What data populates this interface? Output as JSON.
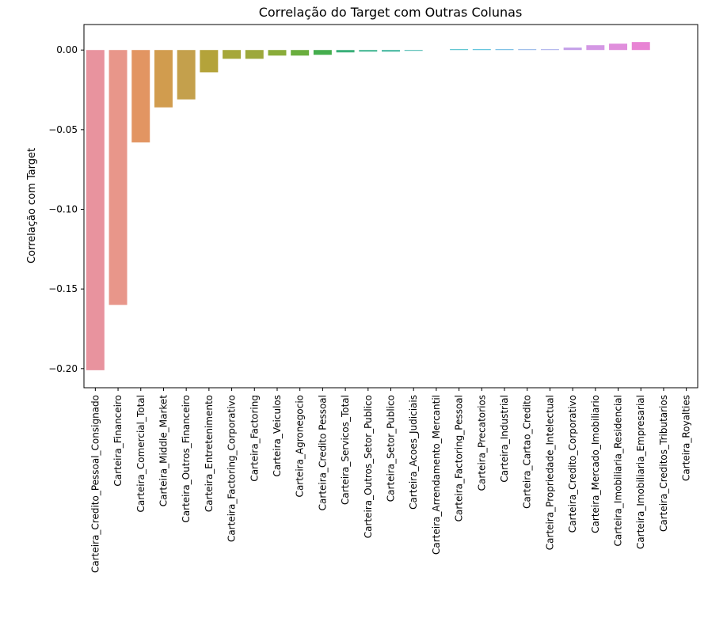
{
  "chart_data": {
    "type": "bar",
    "title": "Correlação do Target com Outras Colunas",
    "xlabel": "",
    "ylabel": "Correlação com Target",
    "ylim": [
      -0.212,
      0.016
    ],
    "yticks": [
      0.0,
      -0.05,
      -0.1,
      -0.15,
      -0.2
    ],
    "ytick_labels": [
      "0.00",
      "−0.05",
      "−0.10",
      "−0.15",
      "−0.20"
    ],
    "grid": false,
    "legend": "none",
    "categories": [
      "Carteira_Credito_Pessoal_Consignado",
      "Carteira_Financeiro",
      "Carteira_Comercial_Total",
      "Carteira_Middle_Market",
      "Carteira_Outros_Financeiro",
      "Carteira_Entretenimento",
      "Carteira_Factoring_Corporativo",
      "Carteira_Factoring",
      "Carteira_Veiculos",
      "Carteira_Agronegocio",
      "Carteira_Credito Pessoal",
      "Carteira_Servicos_Total",
      "Carteira_Outros_Setor_Publico",
      "Carteira_Setor_Publico",
      "Carteira_Acoes_Judiciais",
      "Carteira_Arrendamento_Mercantil",
      "Carteira_Factoring_Pessoal",
      "Carteira_Precatorios",
      "Carteira_Industrial",
      "Carteira_Cartao_Credito",
      "Carteira_Propriedade_Intelectual",
      "Carteira_Credito_Corporativo",
      "Carteira_Mercado_Imobiliario",
      "Carteira_Imobiliaria_Residencial",
      "Carteira_Imobiliaria_Empresarial",
      "Carteira_Creditos_Tributarios",
      "Carteira_Royalties"
    ],
    "values": [
      -0.201,
      -0.16,
      -0.058,
      -0.036,
      -0.031,
      -0.014,
      -0.0055,
      -0.0055,
      -0.0035,
      -0.0035,
      -0.003,
      -0.0015,
      -0.001,
      -0.001,
      -0.0005,
      0.0,
      0.0005,
      0.0005,
      0.0005,
      0.0005,
      0.0005,
      0.0015,
      0.003,
      0.004,
      0.005,
      0.0,
      0.0
    ],
    "colors": [
      "#e8939e",
      "#e8968a",
      "#e29562",
      "#d19c4e",
      "#c4a04c",
      "#b4a33a",
      "#a6a73a",
      "#9da83c",
      "#8aac3a",
      "#6aae3e",
      "#45ae4e",
      "#3bb07a",
      "#3db48f",
      "#3db59c",
      "#3eb5aa",
      "#3db7ba",
      "#3cb9c6",
      "#3fb8d6",
      "#61b3e0",
      "#8ab0e6",
      "#a4a8ea",
      "#c39ee8",
      "#d497e4",
      "#e08fdc",
      "#e884d4",
      "#ee87c4",
      "#ec8fb4"
    ]
  }
}
